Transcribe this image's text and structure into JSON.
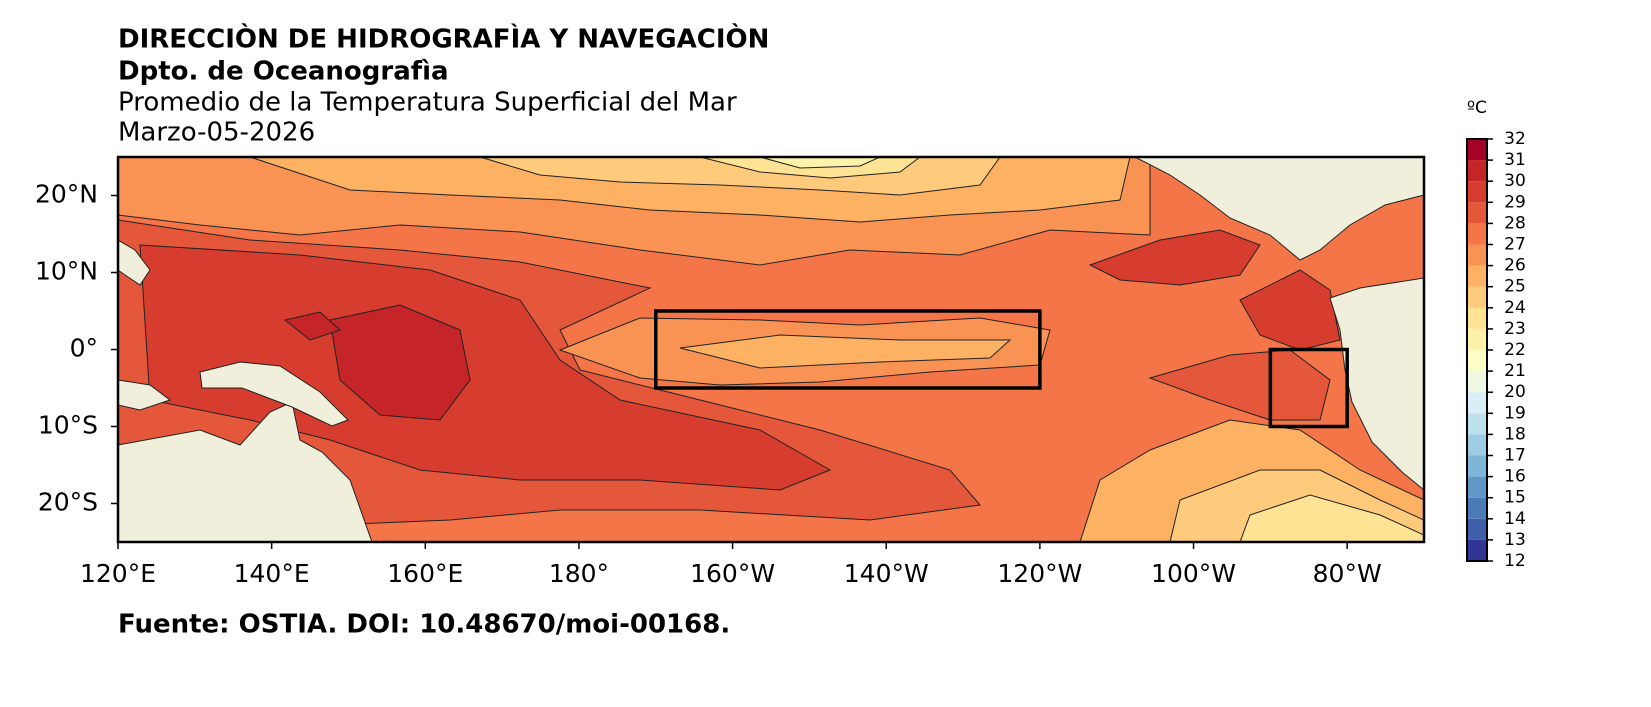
{
  "header": {
    "institution": "DIRECCIÒN DE HIDROGRAFÌA Y NAVEGACIÒN",
    "department": "Dpto. de Oceanografìa",
    "title": "Promedio de la Temperatura Superficial del Mar",
    "date": "Marzo-05-2026"
  },
  "map": {
    "type": "filled-contour-map",
    "xlim": [
      120,
      290
    ],
    "ylim": [
      -25,
      25
    ],
    "xticks": [
      {
        "value": 120,
        "label": "120°E"
      },
      {
        "value": 140,
        "label": "140°E"
      },
      {
        "value": 160,
        "label": "160°E"
      },
      {
        "value": 180,
        "label": "180°"
      },
      {
        "value": 200,
        "label": "160°W"
      },
      {
        "value": 220,
        "label": "140°W"
      },
      {
        "value": 240,
        "label": "120°W"
      },
      {
        "value": 260,
        "label": "100°W"
      },
      {
        "value": 280,
        "label": "80°W"
      }
    ],
    "yticks": [
      {
        "value": 20,
        "label": "20°N"
      },
      {
        "value": 10,
        "label": "10°N"
      },
      {
        "value": 0,
        "label": "0°"
      },
      {
        "value": -10,
        "label": "10°S"
      },
      {
        "value": -20,
        "label": "20°S"
      }
    ],
    "boxes": [
      {
        "lon": [
          190,
          240
        ],
        "lat": [
          -5,
          5
        ]
      },
      {
        "lon": [
          270,
          280
        ],
        "lat": [
          -10,
          0
        ]
      }
    ]
  },
  "colorbar": {
    "unit": "ºC",
    "ticks": [
      12,
      13,
      14,
      15,
      16,
      17,
      18,
      19,
      20,
      21,
      22,
      23,
      24,
      25,
      26,
      27,
      28,
      29,
      30,
      31,
      32
    ],
    "colors": [
      "#313695",
      "#3f5fa9",
      "#4a7bb7",
      "#5f98c8",
      "#7fb5d6",
      "#9ecde3",
      "#bde2ee",
      "#d9eff5",
      "#eef8e4",
      "#fbfdc7",
      "#fff3ac",
      "#fee394",
      "#fdcb7b",
      "#fdb163",
      "#f99354",
      "#f47548",
      "#e5573b",
      "#d73d2e",
      "#c52429",
      "#a50026"
    ]
  },
  "source": "Fuente: OSTIA. DOI: 10.48670/moi-00168."
}
